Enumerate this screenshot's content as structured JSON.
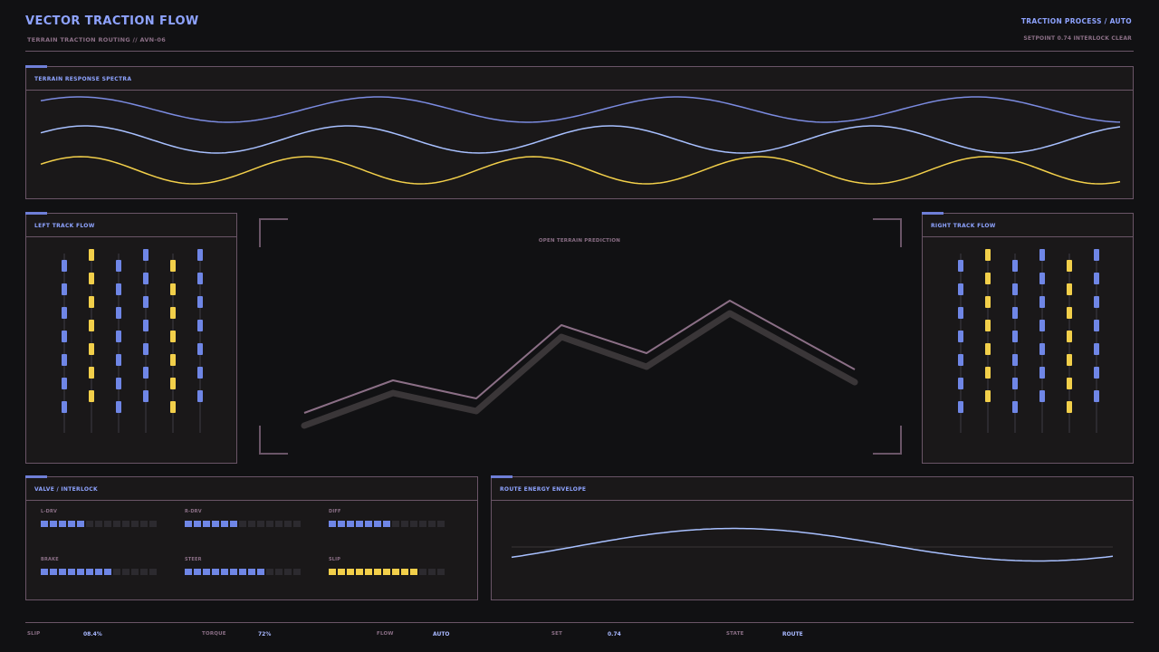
{
  "header": {
    "title": "VECTOR TRACTION FLOW",
    "subtitle": "TERRAIN TRACTION ROUTING  //  AVN-06",
    "mode": "TRACTION PROCESS / AUTO",
    "status": "SETPOINT 0.74  INTERLOCK CLEAR"
  },
  "panels": {
    "spectra": "TERRAIN RESPONSE SPECTRA",
    "left_track": "LEFT TRACK FLOW",
    "right_track": "RIGHT TRACK FLOW",
    "center": "OPEN TERRAIN PREDICTION",
    "valve": "VALVE / INTERLOCK",
    "energy": "ROUTE ENERGY ENVELOPE"
  },
  "valves": [
    {
      "label": "L-DRV",
      "level": 0.4,
      "tone": "blue"
    },
    {
      "label": "R-DRV",
      "level": 0.46,
      "tone": "blue"
    },
    {
      "label": "DIFF",
      "level": 0.5,
      "tone": "blue"
    },
    {
      "label": "BRAKE",
      "level": 0.58,
      "tone": "blue"
    },
    {
      "label": "STEER",
      "level": 0.66,
      "tone": "blue"
    },
    {
      "label": "SLIP",
      "level": 0.77,
      "tone": "yellow"
    }
  ],
  "footer": [
    {
      "label": "SLIP",
      "value": "08.4%"
    },
    {
      "label": "TORQUE",
      "value": "72%"
    },
    {
      "label": "FLOW",
      "value": "AUTO"
    },
    {
      "label": "SET",
      "value": "0.74"
    },
    {
      "label": "STATE",
      "value": "ROUTE"
    }
  ],
  "colors": {
    "blue": "#6f86e6",
    "light_blue": "#a8c0ff",
    "yellow": "#f2cf4a",
    "mauve": "#8b6f86",
    "line_blue": "#7b8be0"
  }
}
